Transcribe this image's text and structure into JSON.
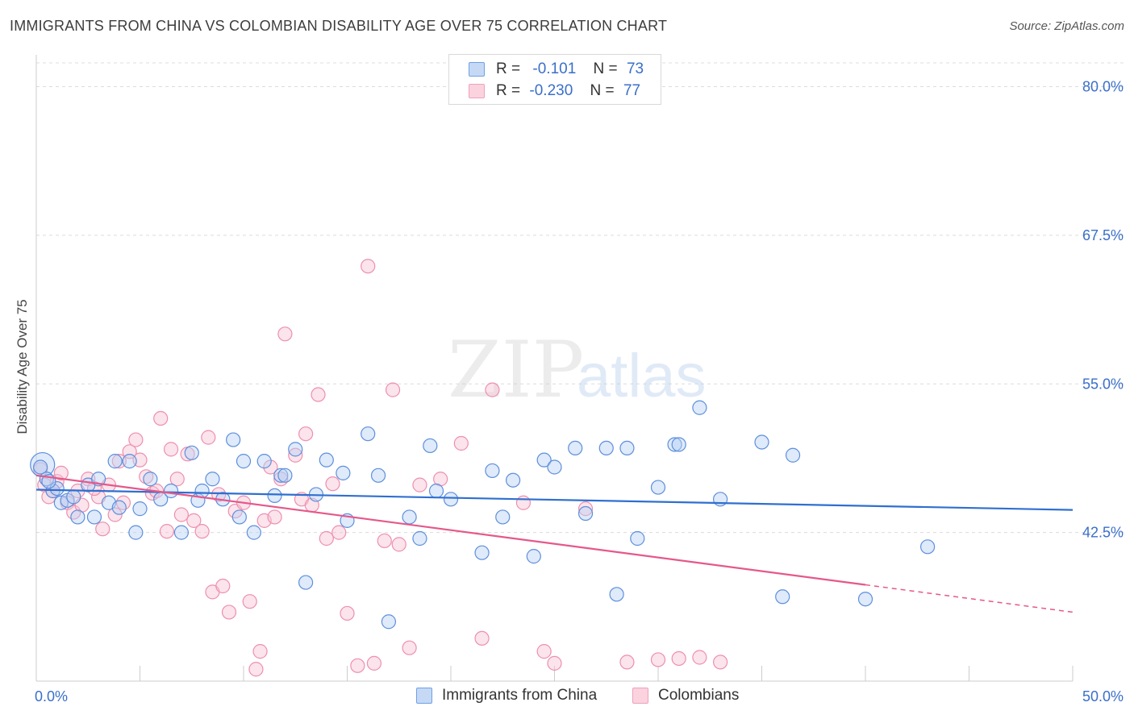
{
  "header": {
    "title": "IMMIGRANTS FROM CHINA VS COLOMBIAN DISABILITY AGE OVER 75 CORRELATION CHART",
    "source": "Source: ZipAtlas.com"
  },
  "watermark": {
    "zip": "ZIP",
    "atlas": "atlas"
  },
  "legend": {
    "rows": [
      {
        "r_label": "R =",
        "r_value": "-0.101",
        "n_label": "N =",
        "n_value": "73",
        "color": "#6fa0e6"
      },
      {
        "r_label": "R =",
        "r_value": "-0.230",
        "n_label": "N =",
        "n_value": "77",
        "color": "#f0a0ba"
      }
    ]
  },
  "bottom_legend": [
    {
      "label": "Immigrants from China",
      "color": "#6fa0e6"
    },
    {
      "label": "Colombians",
      "color": "#f0a0ba"
    }
  ],
  "chart_data": {
    "type": "scatter",
    "title": "IMMIGRANTS FROM CHINA VS COLOMBIAN DISABILITY AGE OVER 75 CORRELATION CHART",
    "xlabel": "",
    "ylabel": "Disability Age Over 75",
    "xlim": [
      0,
      50
    ],
    "ylim": [
      30,
      82
    ],
    "x_tick_labels": [
      "0.0%",
      "50.0%"
    ],
    "y_ticks": [
      42.5,
      55.0,
      67.5,
      80.0
    ],
    "y_tick_labels": [
      "42.5%",
      "55.0%",
      "67.5%",
      "80.0%"
    ],
    "grid": true,
    "legend_placement": "top-center",
    "series": [
      {
        "name": "Immigrants from China",
        "color": "#6fa0e6",
        "line_color": "#2f6fd0",
        "trend": {
          "x": [
            0,
            50
          ],
          "y": [
            46.1,
            44.4
          ]
        },
        "points": [
          [
            0.3,
            48.2
          ],
          [
            0.5,
            47.0
          ],
          [
            0.8,
            46.0
          ],
          [
            1.0,
            46.2
          ],
          [
            1.2,
            45.0
          ],
          [
            1.5,
            45.2
          ],
          [
            1.8,
            45.5
          ],
          [
            2.0,
            43.8
          ],
          [
            2.5,
            46.5
          ],
          [
            2.8,
            43.8
          ],
          [
            3.0,
            47.0
          ],
          [
            3.5,
            45.0
          ],
          [
            3.8,
            48.5
          ],
          [
            4.0,
            44.6
          ],
          [
            4.5,
            48.5
          ],
          [
            4.8,
            42.5
          ],
          [
            5.0,
            44.5
          ],
          [
            5.5,
            47.0
          ],
          [
            6.0,
            45.3
          ],
          [
            6.5,
            46.0
          ],
          [
            7.0,
            42.5
          ],
          [
            7.5,
            49.2
          ],
          [
            7.8,
            45.2
          ],
          [
            8.0,
            46.0
          ],
          [
            8.5,
            47.0
          ],
          [
            9.0,
            45.3
          ],
          [
            9.5,
            50.3
          ],
          [
            9.8,
            43.8
          ],
          [
            10.0,
            48.5
          ],
          [
            10.5,
            42.5
          ],
          [
            11.0,
            48.5
          ],
          [
            11.5,
            45.6
          ],
          [
            11.8,
            47.3
          ],
          [
            12.0,
            47.3
          ],
          [
            12.5,
            49.5
          ],
          [
            13.0,
            38.3
          ],
          [
            13.5,
            45.7
          ],
          [
            14.0,
            48.6
          ],
          [
            14.8,
            47.5
          ],
          [
            15.0,
            43.5
          ],
          [
            16.0,
            50.8
          ],
          [
            16.5,
            47.3
          ],
          [
            17.0,
            35.0
          ],
          [
            18.0,
            43.8
          ],
          [
            18.5,
            42.0
          ],
          [
            19.0,
            49.8
          ],
          [
            19.3,
            46.0
          ],
          [
            20.0,
            45.3
          ],
          [
            21.5,
            40.8
          ],
          [
            22.0,
            47.7
          ],
          [
            22.5,
            43.8
          ],
          [
            23.0,
            46.9
          ],
          [
            24.0,
            40.5
          ],
          [
            24.5,
            48.6
          ],
          [
            25.0,
            48.0
          ],
          [
            26.0,
            49.6
          ],
          [
            26.5,
            44.1
          ],
          [
            27.5,
            49.6
          ],
          [
            28.0,
            37.3
          ],
          [
            28.5,
            49.6
          ],
          [
            29.0,
            42.0
          ],
          [
            30.0,
            46.3
          ],
          [
            30.8,
            49.9
          ],
          [
            31.0,
            49.9
          ],
          [
            32.0,
            53.0
          ],
          [
            33.0,
            45.3
          ],
          [
            35.0,
            50.1
          ],
          [
            36.0,
            37.1
          ],
          [
            36.5,
            49.0
          ],
          [
            40.0,
            36.9
          ],
          [
            43.0,
            41.3
          ],
          [
            0.2,
            48.0
          ],
          [
            0.6,
            46.8
          ]
        ]
      },
      {
        "name": "Colombians",
        "color": "#f0a0ba",
        "line_color": "#e5588a",
        "trend": {
          "x": [
            0,
            40
          ],
          "y": [
            47.3,
            38.1
          ]
        },
        "trend_dashed": {
          "x": [
            40,
            50
          ],
          "y": [
            38.1,
            35.8
          ]
        },
        "points": [
          [
            0.2,
            47.8
          ],
          [
            0.4,
            46.5
          ],
          [
            0.6,
            45.5
          ],
          [
            0.8,
            46.0
          ],
          [
            1.0,
            46.8
          ],
          [
            1.2,
            47.5
          ],
          [
            1.5,
            45.0
          ],
          [
            1.8,
            44.2
          ],
          [
            2.0,
            46.0
          ],
          [
            2.2,
            44.8
          ],
          [
            2.5,
            47.0
          ],
          [
            3.0,
            45.5
          ],
          [
            3.2,
            42.8
          ],
          [
            3.5,
            46.5
          ],
          [
            4.0,
            48.5
          ],
          [
            4.2,
            45.0
          ],
          [
            4.5,
            49.3
          ],
          [
            4.8,
            50.3
          ],
          [
            5.0,
            48.6
          ],
          [
            5.3,
            47.2
          ],
          [
            5.6,
            45.8
          ],
          [
            6.0,
            52.1
          ],
          [
            6.3,
            42.6
          ],
          [
            6.8,
            47.0
          ],
          [
            7.0,
            44.0
          ],
          [
            7.3,
            49.1
          ],
          [
            7.6,
            43.5
          ],
          [
            8.0,
            42.6
          ],
          [
            8.3,
            50.5
          ],
          [
            8.5,
            37.5
          ],
          [
            9.0,
            38.0
          ],
          [
            9.3,
            35.8
          ],
          [
            9.6,
            44.3
          ],
          [
            10.0,
            45.0
          ],
          [
            10.3,
            36.7
          ],
          [
            10.6,
            31.0
          ],
          [
            10.8,
            32.5
          ],
          [
            11.0,
            43.5
          ],
          [
            11.3,
            48.0
          ],
          [
            11.5,
            43.8
          ],
          [
            11.8,
            47.0
          ],
          [
            12.0,
            59.2
          ],
          [
            12.5,
            49.0
          ],
          [
            12.8,
            45.3
          ],
          [
            13.0,
            50.8
          ],
          [
            13.3,
            44.8
          ],
          [
            13.6,
            54.1
          ],
          [
            14.0,
            42.0
          ],
          [
            14.3,
            46.6
          ],
          [
            14.6,
            42.5
          ],
          [
            15.0,
            35.7
          ],
          [
            15.5,
            31.3
          ],
          [
            16.0,
            64.9
          ],
          [
            16.3,
            31.5
          ],
          [
            16.8,
            41.8
          ],
          [
            17.2,
            54.5
          ],
          [
            17.5,
            41.5
          ],
          [
            18.0,
            32.8
          ],
          [
            18.5,
            46.5
          ],
          [
            19.5,
            47.0
          ],
          [
            20.5,
            50.0
          ],
          [
            21.5,
            33.6
          ],
          [
            22.0,
            54.5
          ],
          [
            23.5,
            45.0
          ],
          [
            24.5,
            32.5
          ],
          [
            25.0,
            31.5
          ],
          [
            26.5,
            44.5
          ],
          [
            28.5,
            31.6
          ],
          [
            30.0,
            31.8
          ],
          [
            31.0,
            31.9
          ],
          [
            32.0,
            32.0
          ],
          [
            33.0,
            31.6
          ],
          [
            6.5,
            49.5
          ],
          [
            2.8,
            46.2
          ],
          [
            3.8,
            44.0
          ],
          [
            5.8,
            46.0
          ],
          [
            8.8,
            45.7
          ]
        ]
      }
    ]
  }
}
